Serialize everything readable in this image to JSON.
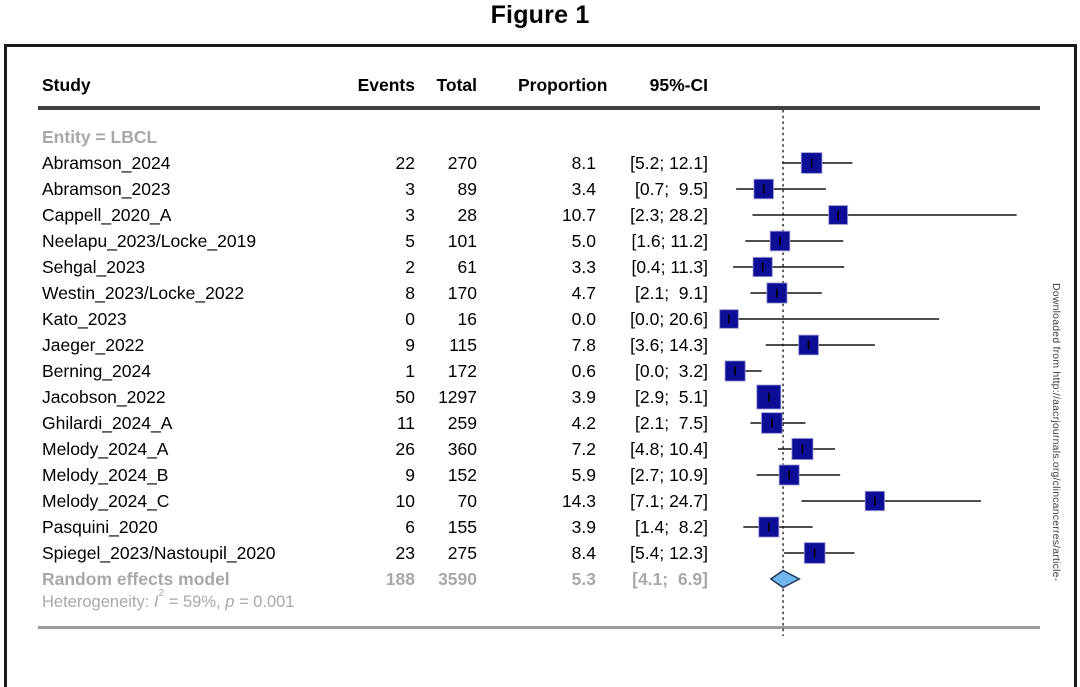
{
  "page": {
    "title": "Figure 1"
  },
  "watermark": {
    "text": "Downloaded from http://aacrjournals.org/clincancerres/article-"
  },
  "table": {
    "col_study": "Study",
    "col_events": "Events",
    "col_total": "Total",
    "col_proportion": "Proportion",
    "col_ci": "95%-CI"
  },
  "heterogeneity": {
    "prefix": "Heterogeneity: ",
    "stat_symbol": "I",
    "stat_sup": "2",
    "stat_rest": " = 59%, ",
    "p_symbol": "p",
    "p_rest": " = 0.001"
  },
  "colors": {
    "square": "#0d0d96",
    "square_halo": "#9d9dd9",
    "ci_line": "#141414",
    "ref_line": "#000000",
    "diamond_fill": "#6fb6ea",
    "diamond_stroke": "#1c355a",
    "muted_text": "#a8a8a8"
  },
  "chart_data": {
    "type": "forest",
    "title": "Figure 1",
    "group_label": "Entity = LBCL",
    "x_unit": "proportion (%)",
    "x_range_shown": [
      0,
      30
    ],
    "ref_line_value": 5.3,
    "grid": false,
    "studies": [
      {
        "label": "Abramson_2024",
        "events": 22,
        "total": 270,
        "proportion": "8.1",
        "ci_text": "[5.2; 12.1]",
        "est": 8.1,
        "lo": 5.2,
        "hi": 12.1
      },
      {
        "label": "Abramson_2023",
        "events": 3,
        "total": 89,
        "proportion": "3.4",
        "ci_text": "[0.7;  9.5]",
        "est": 3.4,
        "lo": 0.7,
        "hi": 9.5
      },
      {
        "label": "Cappell_2020_A",
        "events": 3,
        "total": 28,
        "proportion": "10.7",
        "ci_text": "[2.3; 28.2]",
        "est": 10.7,
        "lo": 2.3,
        "hi": 28.2
      },
      {
        "label": "Neelapu_2023/Locke_2019",
        "events": 5,
        "total": 101,
        "proportion": "5.0",
        "ci_text": "[1.6; 11.2]",
        "est": 5.0,
        "lo": 1.6,
        "hi": 11.2
      },
      {
        "label": "Sehgal_2023",
        "events": 2,
        "total": 61,
        "proportion": "3.3",
        "ci_text": "[0.4; 11.3]",
        "est": 3.3,
        "lo": 0.4,
        "hi": 11.3
      },
      {
        "label": "Westin_2023/Locke_2022",
        "events": 8,
        "total": 170,
        "proportion": "4.7",
        "ci_text": "[2.1;  9.1]",
        "est": 4.7,
        "lo": 2.1,
        "hi": 9.1
      },
      {
        "label": "Kato_2023",
        "events": 0,
        "total": 16,
        "proportion": "0.0",
        "ci_text": "[0.0; 20.6]",
        "est": 0.0,
        "lo": 0.0,
        "hi": 20.6
      },
      {
        "label": "Jaeger_2022",
        "events": 9,
        "total": 115,
        "proportion": "7.8",
        "ci_text": "[3.6; 14.3]",
        "est": 7.8,
        "lo": 3.6,
        "hi": 14.3
      },
      {
        "label": "Berning_2024",
        "events": 1,
        "total": 172,
        "proportion": "0.6",
        "ci_text": "[0.0;  3.2]",
        "est": 0.6,
        "lo": 0.0,
        "hi": 3.2
      },
      {
        "label": "Jacobson_2022",
        "events": 50,
        "total": 1297,
        "proportion": "3.9",
        "ci_text": "[2.9;  5.1]",
        "est": 3.9,
        "lo": 2.9,
        "hi": 5.1
      },
      {
        "label": "Ghilardi_2024_A",
        "events": 11,
        "total": 259,
        "proportion": "4.2",
        "ci_text": "[2.1;  7.5]",
        "est": 4.2,
        "lo": 2.1,
        "hi": 7.5
      },
      {
        "label": "Melody_2024_A",
        "events": 26,
        "total": 360,
        "proportion": "7.2",
        "ci_text": "[4.8; 10.4]",
        "est": 7.2,
        "lo": 4.8,
        "hi": 10.4
      },
      {
        "label": "Melody_2024_B",
        "events": 9,
        "total": 152,
        "proportion": "5.9",
        "ci_text": "[2.7; 10.9]",
        "est": 5.9,
        "lo": 2.7,
        "hi": 10.9
      },
      {
        "label": "Melody_2024_C",
        "events": 10,
        "total": 70,
        "proportion": "14.3",
        "ci_text": "[7.1; 24.7]",
        "est": 14.3,
        "lo": 7.1,
        "hi": 24.7
      },
      {
        "label": "Pasquini_2020",
        "events": 6,
        "total": 155,
        "proportion": "3.9",
        "ci_text": "[1.4;  8.2]",
        "est": 3.9,
        "lo": 1.4,
        "hi": 8.2
      },
      {
        "label": "Spiegel_2023/Nastoupil_2020",
        "events": 23,
        "total": 275,
        "proportion": "8.4",
        "ci_text": "[5.4; 12.3]",
        "est": 8.4,
        "lo": 5.4,
        "hi": 12.3
      }
    ],
    "pooled": {
      "label": "Random effects model",
      "events": 188,
      "total": 3590,
      "proportion": "5.3",
      "ci_text": "[4.1;  6.9]",
      "est": 5.3,
      "lo": 4.1,
      "hi": 6.9
    },
    "heterogeneity_text": "Heterogeneity: I2 = 59%, p = 0.001"
  }
}
